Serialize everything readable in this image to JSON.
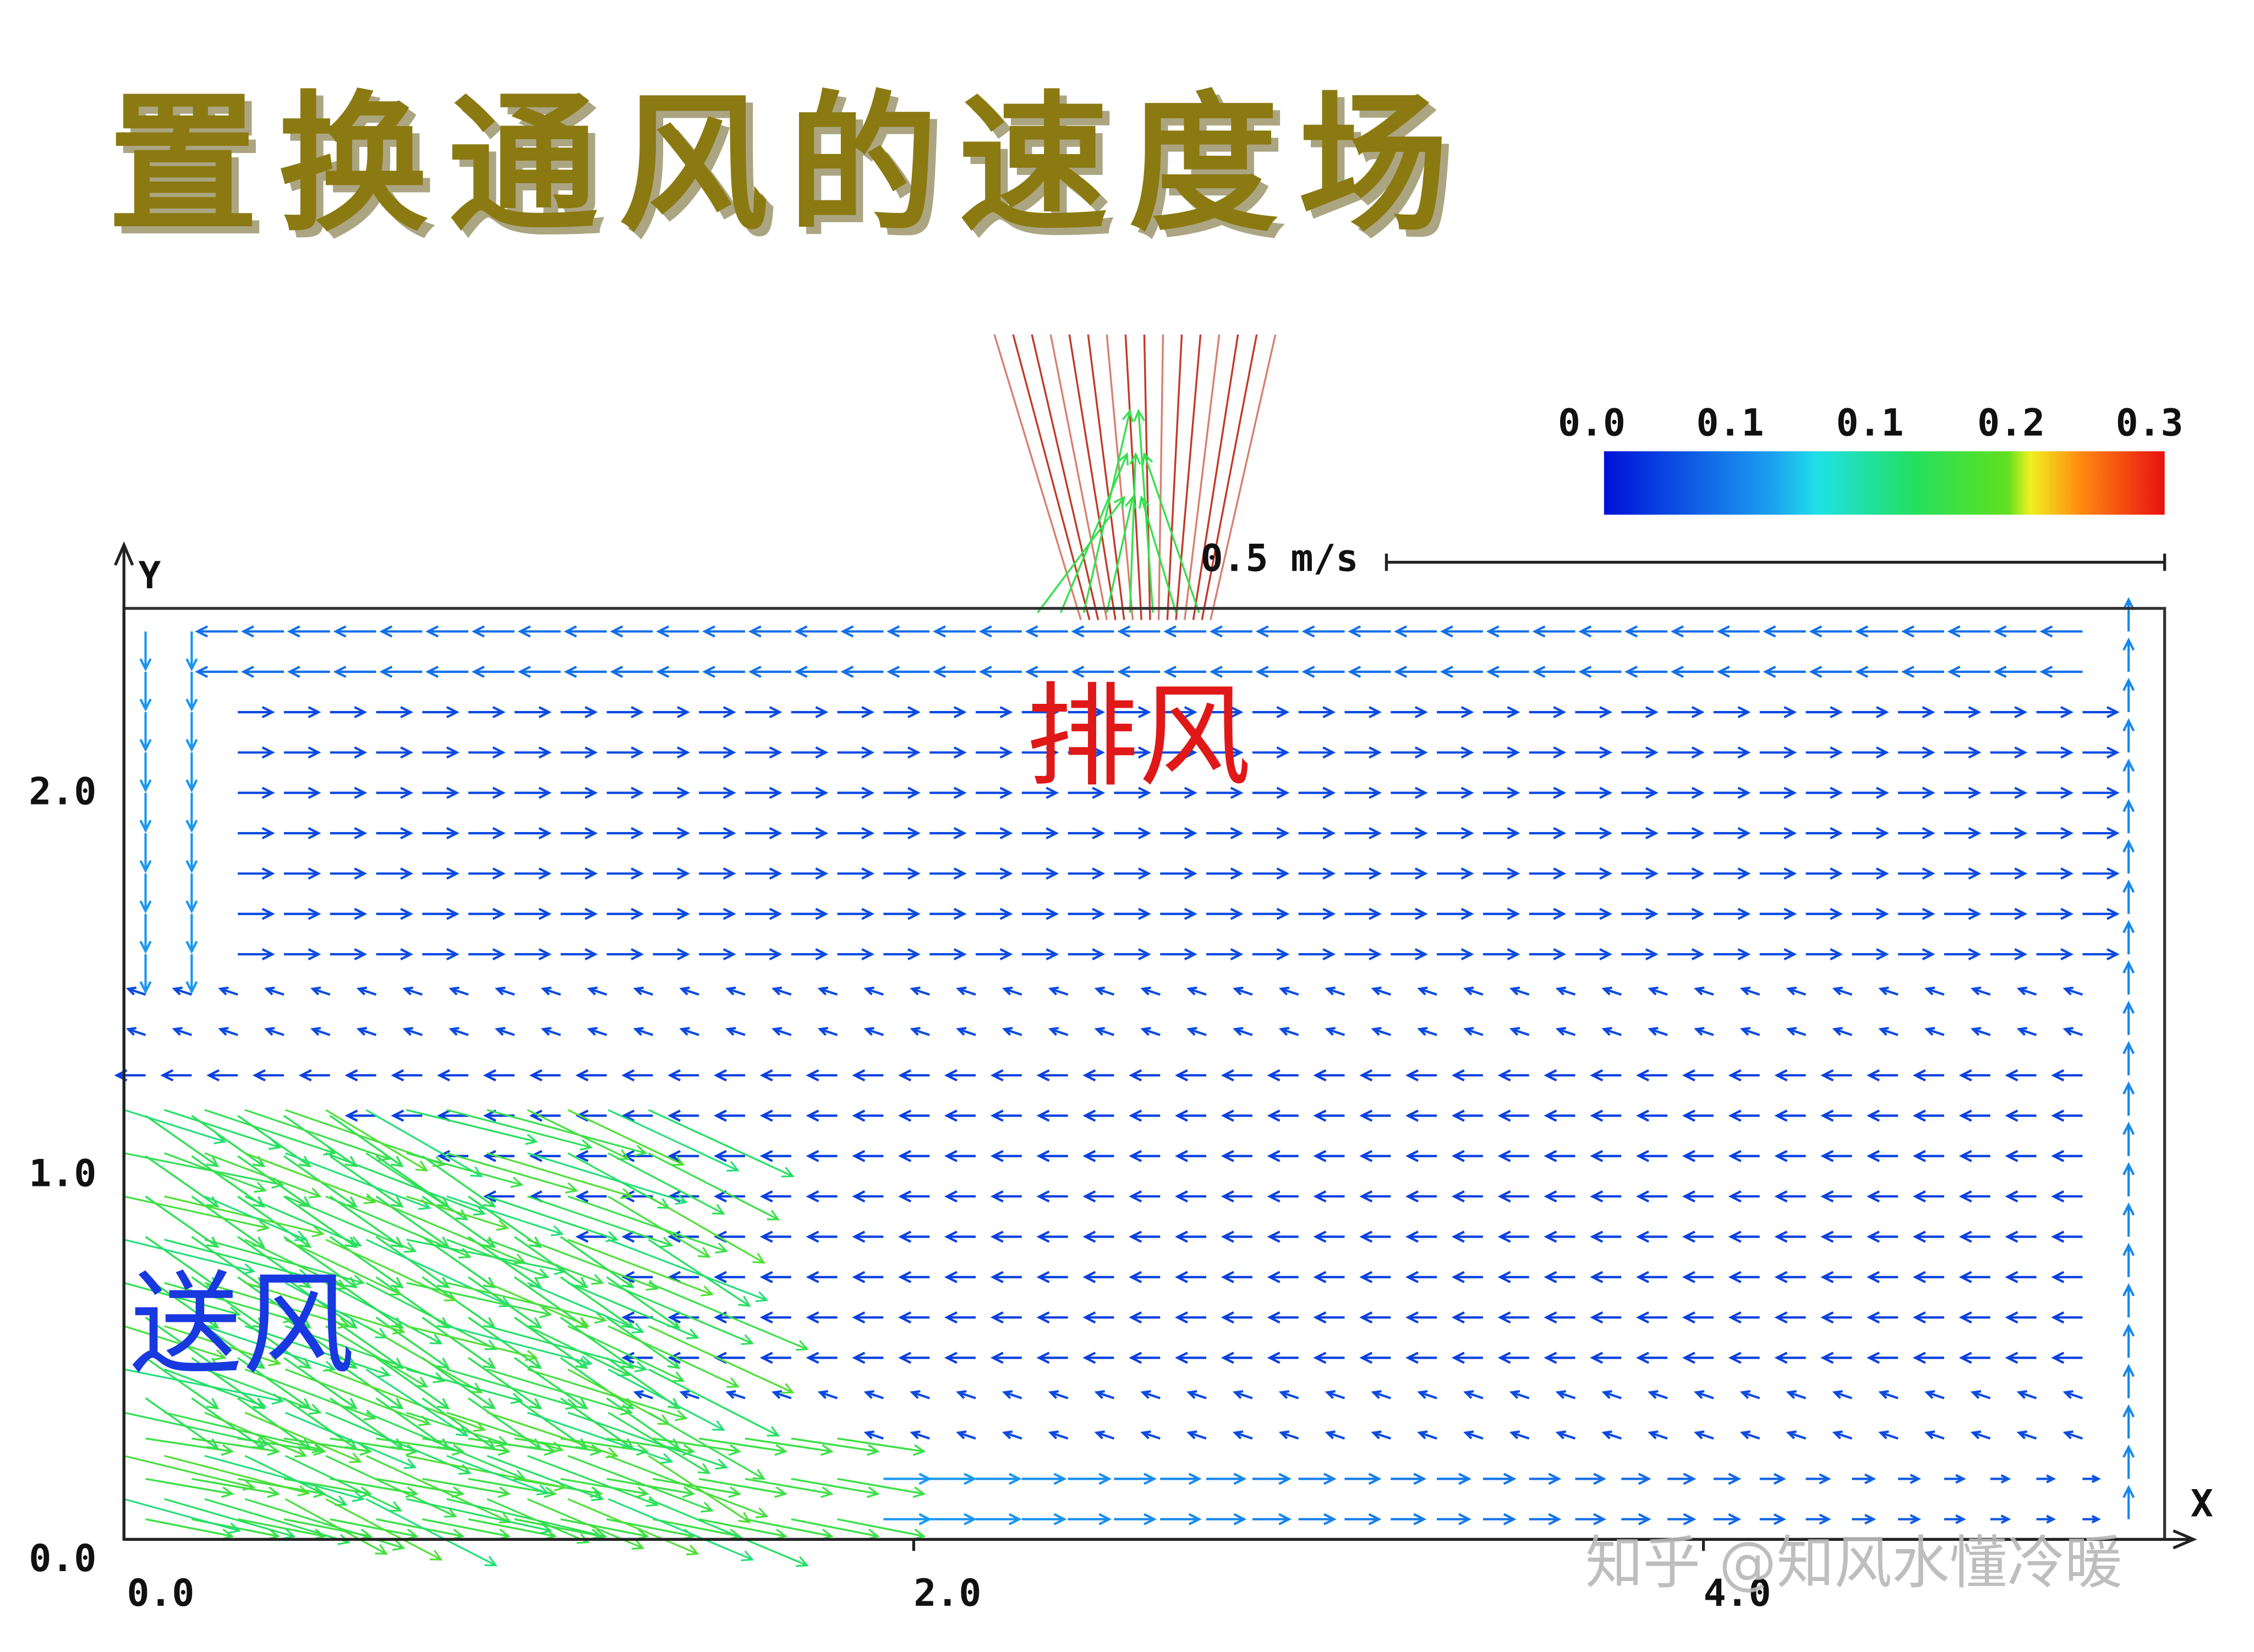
{
  "title": "置换通风的速度场",
  "axes": {
    "x_label": "X",
    "y_label": "Y",
    "x_ticks": [
      "0.0",
      "2.0",
      "4.0"
    ],
    "y_ticks": [
      "2.0",
      "1.0",
      "0.0"
    ]
  },
  "colorbar": {
    "ticks": [
      "0.0",
      "0.1",
      "0.1",
      "0.2",
      "0.3"
    ]
  },
  "scale_label": "0.5 m/s",
  "annotations": {
    "exhaust": "排风",
    "supply": "送风"
  },
  "watermark": "知乎 @知风水懂冷暖"
}
